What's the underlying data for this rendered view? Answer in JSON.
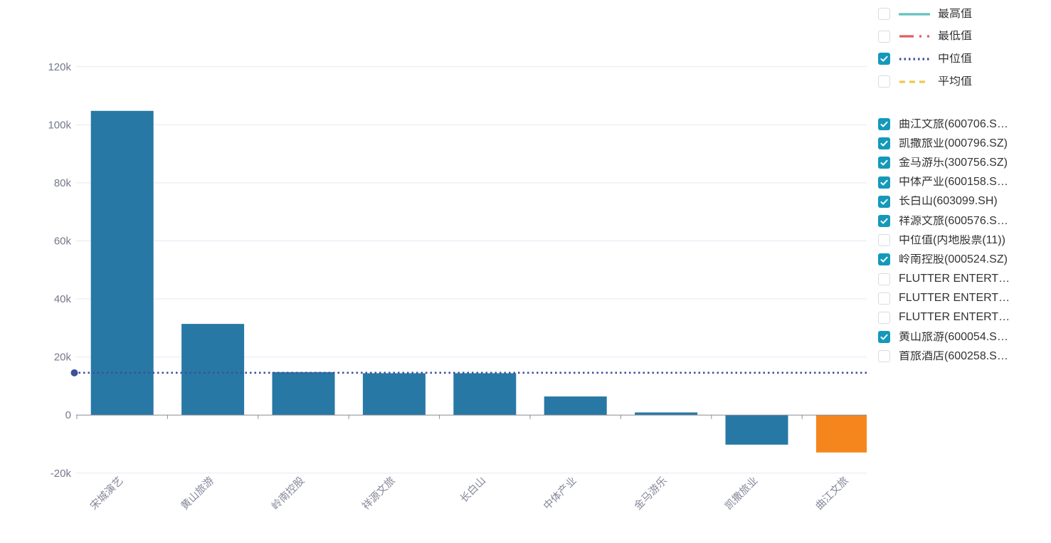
{
  "chart_data": {
    "type": "bar",
    "title": "",
    "xlabel": "",
    "ylabel": "",
    "categories": [
      "宋城演艺",
      "黄山旅游",
      "岭南控股",
      "祥源文旅",
      "长白山",
      "中体产业",
      "金马游乐",
      "凯撒旅业",
      "曲江文旅"
    ],
    "values": [
      104800,
      31400,
      14800,
      14400,
      14400,
      6400,
      900,
      -10200,
      -12900
    ],
    "bar_color_default": "#2878a5",
    "bar_color_highlight": "#f5861d",
    "highlight_index": 8,
    "median_line": {
      "label": "中位值",
      "value": 14550,
      "color": "#3e4f9e",
      "dash": "2.5 4",
      "start_dot": true
    },
    "y_ticks": [
      {
        "label": "120k",
        "value": 120000
      },
      {
        "label": "100k",
        "value": 100000
      },
      {
        "label": "80k",
        "value": 80000
      },
      {
        "label": "60k",
        "value": 60000
      },
      {
        "label": "40k",
        "value": 40000
      },
      {
        "label": "20k",
        "value": 20000
      },
      {
        "label": "0",
        "value": 0
      },
      {
        "label": "-20k",
        "value": -20000
      }
    ],
    "ylim": [
      -20000,
      120000
    ],
    "grid": true,
    "legend_position": "right",
    "x_label_rotation_deg": 45
  },
  "measure_legend": {
    "items": [
      {
        "label": "最高值",
        "checked": false,
        "line_color": "#63c1bc",
        "line_dash": ""
      },
      {
        "label": "最低值",
        "checked": false,
        "line_color": "#e25f5f",
        "line_dash": "20 8 3 8"
      },
      {
        "label": "中位值",
        "checked": true,
        "line_color": "#3e4f9e",
        "line_dash": "2.5 4"
      },
      {
        "label": "平均值",
        "checked": false,
        "line_color": "#edc84e",
        "line_dash": "8 6"
      }
    ]
  },
  "series_legend": {
    "items": [
      {
        "label": "曲江文旅(600706.S…",
        "checked": true
      },
      {
        "label": "凯撒旅业(000796.SZ)",
        "checked": true
      },
      {
        "label": "金马游乐(300756.SZ)",
        "checked": true
      },
      {
        "label": "中体产业(600158.S…",
        "checked": true
      },
      {
        "label": "长白山(603099.SH)",
        "checked": true
      },
      {
        "label": "祥源文旅(600576.S…",
        "checked": true
      },
      {
        "label": "中位值(内地股票(11))",
        "checked": false
      },
      {
        "label": "岭南控股(000524.SZ)",
        "checked": true
      },
      {
        "label": "FLUTTER ENTERT…",
        "checked": false
      },
      {
        "label": "FLUTTER ENTERT…",
        "checked": false
      },
      {
        "label": "FLUTTER ENTERT…",
        "checked": false
      },
      {
        "label": "黄山旅游(600054.S…",
        "checked": true
      },
      {
        "label": "首旅酒店(600258.S…",
        "checked": false
      }
    ]
  },
  "colors": {
    "background": "#ffffff",
    "grid_line": "#e6e9f4",
    "axis_line": "#8b8e96",
    "y_tick_label": "#75798a",
    "x_tick_label": "#85889a",
    "legend_text": "#333333",
    "checkbox_checked": "#1499ba",
    "checkbox_border": "#d9dbe0"
  }
}
